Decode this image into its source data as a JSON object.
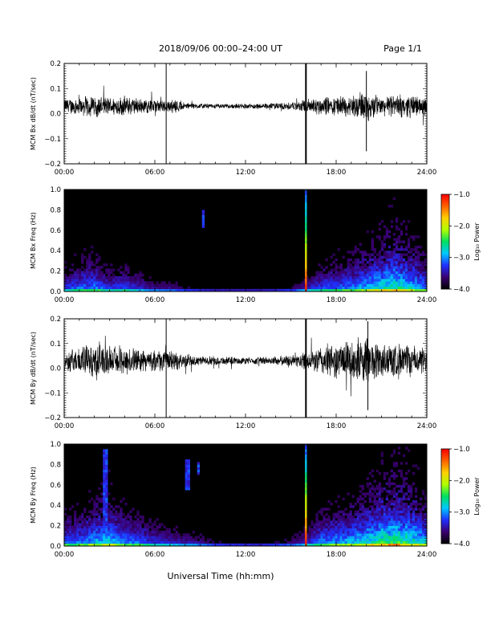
{
  "header": {
    "title": "2018/09/06  00:00–24:00 UT",
    "page": "Page 1/1"
  },
  "xlabel": "Universal Time (hh:mm)",
  "chart_data": [
    {
      "type": "line",
      "ylabel": "MCM Bx dB/dt (nT/sec)",
      "xlim": [
        0,
        24
      ],
      "xticklabels": [
        "00:00",
        "06:00",
        "12:00",
        "18:00",
        "24:00"
      ],
      "ylim": [
        -0.2,
        0.2
      ],
      "yticks": [
        0.2,
        0.1,
        0.0,
        -0.1,
        -0.2
      ],
      "yticklabels": [
        "0.2",
        "0.1",
        "0.0",
        "−0.1",
        "−0.2"
      ],
      "baseline": 0.03,
      "envelope": {
        "t": [
          0,
          1,
          2,
          3,
          4,
          5,
          6,
          6.8,
          7.5,
          8,
          9,
          10,
          11,
          12,
          13,
          14,
          15,
          15.5,
          16,
          16.5,
          17,
          18,
          19,
          19.5,
          20,
          20.5,
          21,
          22,
          23,
          24
        ],
        "amp": [
          0.035,
          0.04,
          0.05,
          0.04,
          0.045,
          0.035,
          0.03,
          0.03,
          0.03,
          0.015,
          0.012,
          0.01,
          0.01,
          0.012,
          0.012,
          0.015,
          0.018,
          0.022,
          0.03,
          0.04,
          0.04,
          0.045,
          0.05,
          0.06,
          0.07,
          0.055,
          0.04,
          0.05,
          0.05,
          0.04
        ]
      },
      "spikes": [
        {
          "t": 6.75,
          "min": -0.2,
          "max": 0.2
        },
        {
          "t": 16.0,
          "min": -0.2,
          "max": 0.2
        },
        {
          "t": 20.0,
          "min": -0.15,
          "max": 0.17
        }
      ]
    },
    {
      "type": "heatmap",
      "ylabel": "MCM Bx Freq (Hz)",
      "xlim": [
        0,
        24
      ],
      "xticklabels": [
        "00:00",
        "06:00",
        "12:00",
        "18:00",
        "24:00"
      ],
      "ylim": [
        0,
        1.0
      ],
      "yticks": [
        1.0,
        0.8,
        0.6,
        0.4,
        0.2,
        0.0
      ],
      "yticklabels": [
        "1.0",
        "0.8",
        "0.6",
        "0.4",
        "0.2",
        "0.0"
      ],
      "colorbar": {
        "label": "Log₁₀ Power",
        "range": [
          -4.0,
          -1.0
        ],
        "ticklabels": [
          "−1.0",
          "−2.0",
          "−3.0",
          "−4.0"
        ],
        "colors": [
          "#000000",
          "#3a0070",
          "#2030ff",
          "#00c8ff",
          "#00e060",
          "#b0ff00",
          "#ffd000",
          "#ff6000",
          "#ff0000"
        ]
      },
      "activity": {
        "t": [
          0,
          1,
          2,
          3,
          4,
          5,
          6,
          7,
          8,
          9,
          10,
          11,
          12,
          13,
          14,
          15,
          16,
          16.5,
          17,
          18,
          19,
          20,
          21,
          22,
          23,
          24
        ],
        "level": [
          0.45,
          0.55,
          0.6,
          0.45,
          0.5,
          0.4,
          0.3,
          0.3,
          0.2,
          0.15,
          0.12,
          0.12,
          0.12,
          0.12,
          0.15,
          0.2,
          0.35,
          0.45,
          0.5,
          0.55,
          0.6,
          0.7,
          0.8,
          0.85,
          0.75,
          0.6
        ]
      },
      "events": [
        {
          "t": 16.0,
          "type": "broadband"
        },
        {
          "t": 9.2,
          "fmin": 0.62,
          "fmax": 0.8
        }
      ]
    },
    {
      "type": "line",
      "ylabel": "MCM By dB/dt (nT/sec)",
      "xlim": [
        0,
        24
      ],
      "xticklabels": [
        "00:00",
        "06:00",
        "12:00",
        "18:00",
        "24:00"
      ],
      "ylim": [
        -0.2,
        0.2
      ],
      "yticks": [
        0.2,
        0.1,
        0.0,
        -0.1,
        -0.2
      ],
      "yticklabels": [
        "0.2",
        "0.1",
        "0.0",
        "−0.1",
        "−0.2"
      ],
      "baseline": 0.03,
      "envelope": {
        "t": [
          0,
          1,
          2,
          2.5,
          3,
          4,
          5,
          6,
          6.8,
          7.5,
          8,
          9,
          10,
          11,
          12,
          13,
          14,
          15,
          15.5,
          16,
          16.5,
          17,
          18,
          19,
          19.5,
          20,
          20.5,
          21,
          22,
          23,
          24
        ],
        "amp": [
          0.045,
          0.06,
          0.08,
          0.09,
          0.06,
          0.07,
          0.05,
          0.045,
          0.05,
          0.04,
          0.03,
          0.02,
          0.02,
          0.018,
          0.015,
          0.018,
          0.02,
          0.025,
          0.03,
          0.04,
          0.05,
          0.07,
          0.08,
          0.09,
          0.1,
          0.11,
          0.09,
          0.08,
          0.08,
          0.07,
          0.06
        ]
      },
      "spikes": [
        {
          "t": 6.75,
          "min": -0.2,
          "max": 0.2
        },
        {
          "t": 16.0,
          "min": -0.2,
          "max": 0.2
        },
        {
          "t": 20.1,
          "min": -0.17,
          "max": 0.19
        }
      ]
    },
    {
      "type": "heatmap",
      "ylabel": "MCM By Freq (Hz)",
      "xlim": [
        0,
        24
      ],
      "xticklabels": [
        "00:00",
        "06:00",
        "12:00",
        "18:00",
        "24:00"
      ],
      "ylim": [
        0,
        1.0
      ],
      "yticks": [
        1.0,
        0.8,
        0.6,
        0.4,
        0.2,
        0.0
      ],
      "yticklabels": [
        "1.0",
        "0.8",
        "0.6",
        "0.4",
        "0.2",
        "0.0"
      ],
      "colorbar": {
        "label": "Log₁₀ Power",
        "range": [
          -4.0,
          -1.0
        ],
        "ticklabels": [
          "−1.0",
          "−2.0",
          "−3.0",
          "−4.0"
        ],
        "colors": [
          "#000000",
          "#3a0070",
          "#2030ff",
          "#00c8ff",
          "#00e060",
          "#b0ff00",
          "#ffd000",
          "#ff6000",
          "#ff0000"
        ]
      },
      "activity": {
        "t": [
          0,
          1,
          2,
          3,
          4,
          5,
          6,
          7,
          8,
          9,
          10,
          11,
          12,
          13,
          14,
          15,
          16,
          16.5,
          17,
          18,
          19,
          20,
          21,
          22,
          23,
          24
        ],
        "level": [
          0.55,
          0.6,
          0.7,
          0.75,
          0.6,
          0.55,
          0.45,
          0.4,
          0.35,
          0.3,
          0.2,
          0.18,
          0.15,
          0.15,
          0.2,
          0.25,
          0.4,
          0.5,
          0.6,
          0.65,
          0.7,
          0.8,
          0.9,
          0.95,
          0.85,
          0.7
        ]
      },
      "events": [
        {
          "t": 16.0,
          "type": "broadband"
        },
        {
          "t": 2.7,
          "fmin": 0.1,
          "fmax": 0.95
        },
        {
          "t": 8.2,
          "fmin": 0.55,
          "fmax": 0.85
        },
        {
          "t": 8.9,
          "fmin": 0.7,
          "fmax": 0.82
        }
      ]
    }
  ]
}
